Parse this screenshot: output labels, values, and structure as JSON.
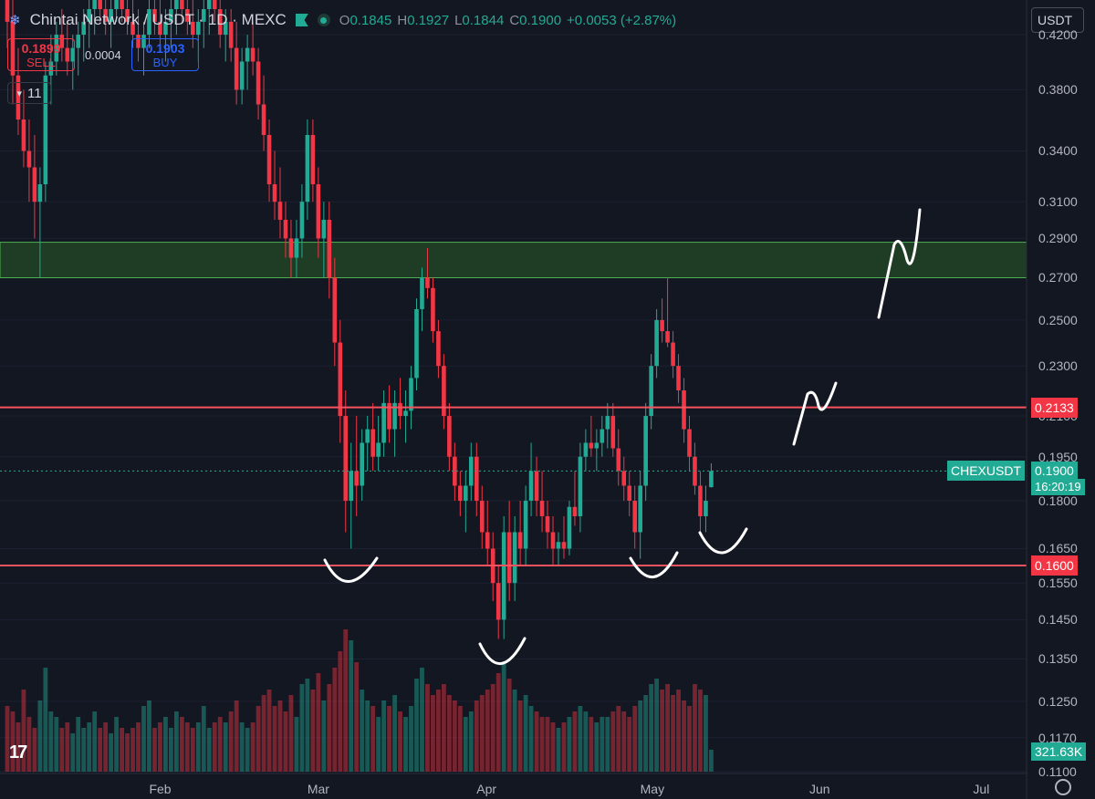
{
  "header": {
    "title": "Chintai Network / USDT · 1D · MEXC",
    "ohlc": [
      {
        "k": "O",
        "v": "0.1845"
      },
      {
        "k": "H",
        "v": "0.1927"
      },
      {
        "k": "L",
        "v": "0.1844"
      },
      {
        "k": "C",
        "v": "0.1900"
      }
    ],
    "change": "+0.0053 (+2.87%)"
  },
  "trade": {
    "sell_price": "0.1899",
    "sell_label": "SELL",
    "spread": "0.0004",
    "buy_price": "0.1903",
    "buy_label": "BUY"
  },
  "indicators_count": "11",
  "currency_button": "USDT",
  "price_axis": [
    "0.4200",
    "0.3800",
    "0.3400",
    "0.3100",
    "0.2900",
    "0.2700",
    "0.2500",
    "0.2300",
    "0.2100",
    "0.1950",
    "0.1800",
    "0.1650",
    "0.1550",
    "0.1450",
    "0.1350",
    "0.1250",
    "0.1170",
    "0.1100"
  ],
  "tags": {
    "resistance": "0.2133",
    "symbol": "CHEXUSDT",
    "last_price": "0.1900",
    "countdown": "16:20:19",
    "support": "0.1600",
    "volume": "321.63K"
  },
  "time_axis": [
    "Feb",
    "Mar",
    "Apr",
    "May",
    "Jun",
    "Jul"
  ],
  "colors": {
    "up": "#22ab94",
    "down": "#f23645",
    "zone": "#2e6b2a",
    "line": "#f7525f"
  },
  "chart_data": {
    "type": "candlestick",
    "scale": "log",
    "ylim": [
      0.11,
      0.44
    ],
    "supply_zone": [
      0.27,
      0.288
    ],
    "horizontal_lines": [
      0.2133,
      0.16
    ],
    "last_price": 0.19,
    "volume_last": "321.63K",
    "date_start": "2024-01-04",
    "candles": [
      [
        0.45,
        0.48,
        0.41,
        0.43,
        1.2
      ],
      [
        0.43,
        0.45,
        0.37,
        0.39,
        1.1
      ],
      [
        0.39,
        0.41,
        0.35,
        0.36,
        0.9
      ],
      [
        0.36,
        0.38,
        0.33,
        0.34,
        1.5
      ],
      [
        0.34,
        0.36,
        0.31,
        0.33,
        1.0
      ],
      [
        0.33,
        0.35,
        0.29,
        0.31,
        0.8
      ],
      [
        0.31,
        0.33,
        0.27,
        0.32,
        1.3
      ],
      [
        0.32,
        0.4,
        0.31,
        0.39,
        1.9
      ],
      [
        0.39,
        0.42,
        0.37,
        0.4,
        1.1
      ],
      [
        0.4,
        0.43,
        0.39,
        0.42,
        1.0
      ],
      [
        0.42,
        0.44,
        0.4,
        0.41,
        0.8
      ],
      [
        0.41,
        0.43,
        0.39,
        0.4,
        0.9
      ],
      [
        0.4,
        0.42,
        0.38,
        0.41,
        0.7
      ],
      [
        0.41,
        0.43,
        0.39,
        0.42,
        1.0
      ],
      [
        0.42,
        0.44,
        0.4,
        0.43,
        0.8
      ],
      [
        0.43,
        0.45,
        0.41,
        0.44,
        0.9
      ],
      [
        0.44,
        0.46,
        0.42,
        0.45,
        1.1
      ],
      [
        0.45,
        0.47,
        0.43,
        0.44,
        0.8
      ],
      [
        0.44,
        0.46,
        0.42,
        0.43,
        0.9
      ],
      [
        0.43,
        0.45,
        0.41,
        0.44,
        0.7
      ],
      [
        0.44,
        0.46,
        0.43,
        0.45,
        1.0
      ],
      [
        0.45,
        0.47,
        0.43,
        0.44,
        0.8
      ],
      [
        0.44,
        0.46,
        0.42,
        0.43,
        0.7
      ],
      [
        0.43,
        0.45,
        0.41,
        0.42,
        0.8
      ],
      [
        0.42,
        0.44,
        0.4,
        0.41,
        0.9
      ],
      [
        0.41,
        0.43,
        0.39,
        0.42,
        1.2
      ],
      [
        0.42,
        0.45,
        0.41,
        0.44,
        1.3
      ],
      [
        0.44,
        0.46,
        0.42,
        0.43,
        0.8
      ],
      [
        0.43,
        0.45,
        0.41,
        0.42,
        0.9
      ],
      [
        0.42,
        0.44,
        0.4,
        0.43,
        1.0
      ],
      [
        0.43,
        0.45,
        0.41,
        0.44,
        0.8
      ],
      [
        0.44,
        0.46,
        0.42,
        0.45,
        1.1
      ],
      [
        0.45,
        0.47,
        0.43,
        0.44,
        1.0
      ],
      [
        0.44,
        0.46,
        0.42,
        0.43,
        0.9
      ],
      [
        0.43,
        0.45,
        0.41,
        0.42,
        0.8
      ],
      [
        0.42,
        0.44,
        0.4,
        0.43,
        0.9
      ],
      [
        0.43,
        0.45,
        0.41,
        0.44,
        1.2
      ],
      [
        0.44,
        0.46,
        0.42,
        0.45,
        0.8
      ],
      [
        0.45,
        0.46,
        0.43,
        0.44,
        0.9
      ],
      [
        0.44,
        0.45,
        0.41,
        0.42,
        1.0
      ],
      [
        0.42,
        0.44,
        0.4,
        0.43,
        0.9
      ],
      [
        0.43,
        0.44,
        0.4,
        0.41,
        1.1
      ],
      [
        0.41,
        0.43,
        0.37,
        0.38,
        1.3
      ],
      [
        0.38,
        0.41,
        0.37,
        0.4,
        0.9
      ],
      [
        0.4,
        0.42,
        0.38,
        0.41,
        0.8
      ],
      [
        0.41,
        0.43,
        0.39,
        0.4,
        0.9
      ],
      [
        0.4,
        0.41,
        0.36,
        0.37,
        1.2
      ],
      [
        0.37,
        0.39,
        0.34,
        0.35,
        1.4
      ],
      [
        0.35,
        0.36,
        0.31,
        0.32,
        1.5
      ],
      [
        0.32,
        0.34,
        0.3,
        0.31,
        1.2
      ],
      [
        0.31,
        0.33,
        0.29,
        0.3,
        1.3
      ],
      [
        0.3,
        0.31,
        0.28,
        0.29,
        1.1
      ],
      [
        0.29,
        0.3,
        0.27,
        0.28,
        1.4
      ],
      [
        0.28,
        0.3,
        0.27,
        0.29,
        1.0
      ],
      [
        0.29,
        0.32,
        0.28,
        0.31,
        1.6
      ],
      [
        0.31,
        0.36,
        0.3,
        0.35,
        1.7
      ],
      [
        0.35,
        0.36,
        0.31,
        0.32,
        1.5
      ],
      [
        0.32,
        0.33,
        0.28,
        0.29,
        1.8
      ],
      [
        0.29,
        0.31,
        0.27,
        0.3,
        1.3
      ],
      [
        0.3,
        0.31,
        0.26,
        0.27,
        1.6
      ],
      [
        0.27,
        0.28,
        0.23,
        0.24,
        1.9
      ],
      [
        0.24,
        0.25,
        0.2,
        0.21,
        2.2
      ],
      [
        0.21,
        0.22,
        0.17,
        0.18,
        2.6
      ],
      [
        0.18,
        0.2,
        0.165,
        0.19,
        2.4
      ],
      [
        0.19,
        0.21,
        0.175,
        0.185,
        2.0
      ],
      [
        0.185,
        0.205,
        0.18,
        0.2,
        1.5
      ],
      [
        0.2,
        0.21,
        0.19,
        0.205,
        1.3
      ],
      [
        0.205,
        0.215,
        0.19,
        0.195,
        1.2
      ],
      [
        0.195,
        0.21,
        0.19,
        0.2,
        1.0
      ],
      [
        0.2,
        0.22,
        0.195,
        0.215,
        1.3
      ],
      [
        0.215,
        0.222,
        0.2,
        0.205,
        1.2
      ],
      [
        0.205,
        0.22,
        0.195,
        0.215,
        1.4
      ],
      [
        0.215,
        0.225,
        0.205,
        0.21,
        1.1
      ],
      [
        0.21,
        0.22,
        0.2,
        0.212,
        1.0
      ],
      [
        0.212,
        0.23,
        0.205,
        0.225,
        1.2
      ],
      [
        0.225,
        0.26,
        0.22,
        0.255,
        1.7
      ],
      [
        0.255,
        0.275,
        0.245,
        0.27,
        1.9
      ],
      [
        0.27,
        0.285,
        0.26,
        0.265,
        1.6
      ],
      [
        0.265,
        0.27,
        0.24,
        0.245,
        1.4
      ],
      [
        0.245,
        0.25,
        0.225,
        0.23,
        1.5
      ],
      [
        0.23,
        0.235,
        0.205,
        0.21,
        1.6
      ],
      [
        0.21,
        0.215,
        0.19,
        0.195,
        1.4
      ],
      [
        0.195,
        0.2,
        0.18,
        0.185,
        1.3
      ],
      [
        0.185,
        0.19,
        0.175,
        0.18,
        1.2
      ],
      [
        0.18,
        0.19,
        0.17,
        0.185,
        1.0
      ],
      [
        0.185,
        0.2,
        0.18,
        0.195,
        1.1
      ],
      [
        0.195,
        0.2,
        0.175,
        0.18,
        1.3
      ],
      [
        0.18,
        0.185,
        0.165,
        0.17,
        1.4
      ],
      [
        0.17,
        0.18,
        0.16,
        0.165,
        1.5
      ],
      [
        0.165,
        0.17,
        0.15,
        0.155,
        1.6
      ],
      [
        0.155,
        0.16,
        0.14,
        0.145,
        1.8
      ],
      [
        0.145,
        0.175,
        0.14,
        0.17,
        2.0
      ],
      [
        0.17,
        0.18,
        0.15,
        0.155,
        1.7
      ],
      [
        0.155,
        0.175,
        0.15,
        0.17,
        1.5
      ],
      [
        0.17,
        0.18,
        0.16,
        0.165,
        1.3
      ],
      [
        0.165,
        0.185,
        0.16,
        0.18,
        1.4
      ],
      [
        0.18,
        0.2,
        0.175,
        0.19,
        1.2
      ],
      [
        0.19,
        0.195,
        0.175,
        0.18,
        1.1
      ],
      [
        0.18,
        0.19,
        0.17,
        0.175,
        1.0
      ],
      [
        0.175,
        0.18,
        0.165,
        0.17,
        1.0
      ],
      [
        0.17,
        0.175,
        0.16,
        0.165,
        0.9
      ],
      [
        0.165,
        0.17,
        0.16,
        0.167,
        0.8
      ],
      [
        0.167,
        0.175,
        0.162,
        0.165,
        0.9
      ],
      [
        0.165,
        0.18,
        0.163,
        0.178,
        1.0
      ],
      [
        0.178,
        0.19,
        0.172,
        0.175,
        1.1
      ],
      [
        0.175,
        0.2,
        0.17,
        0.195,
        1.2
      ],
      [
        0.195,
        0.205,
        0.19,
        0.2,
        1.1
      ],
      [
        0.2,
        0.21,
        0.195,
        0.198,
        1.0
      ],
      [
        0.198,
        0.205,
        0.19,
        0.2,
        0.9
      ],
      [
        0.2,
        0.21,
        0.195,
        0.205,
        1.0
      ],
      [
        0.205,
        0.215,
        0.198,
        0.21,
        1.0
      ],
      [
        0.21,
        0.215,
        0.195,
        0.198,
        1.1
      ],
      [
        0.198,
        0.205,
        0.185,
        0.19,
        1.2
      ],
      [
        0.19,
        0.195,
        0.18,
        0.185,
        1.1
      ],
      [
        0.185,
        0.19,
        0.175,
        0.18,
        1.0
      ],
      [
        0.18,
        0.185,
        0.165,
        0.17,
        1.2
      ],
      [
        0.17,
        0.19,
        0.162,
        0.185,
        1.3
      ],
      [
        0.185,
        0.215,
        0.18,
        0.21,
        1.4
      ],
      [
        0.21,
        0.235,
        0.205,
        0.23,
        1.6
      ],
      [
        0.23,
        0.255,
        0.225,
        0.25,
        1.7
      ],
      [
        0.25,
        0.26,
        0.24,
        0.245,
        1.5
      ],
      [
        0.245,
        0.27,
        0.238,
        0.24,
        1.6
      ],
      [
        0.24,
        0.245,
        0.225,
        0.23,
        1.4
      ],
      [
        0.23,
        0.235,
        0.215,
        0.22,
        1.5
      ],
      [
        0.22,
        0.225,
        0.2,
        0.205,
        1.3
      ],
      [
        0.205,
        0.21,
        0.19,
        0.195,
        1.2
      ],
      [
        0.195,
        0.2,
        0.182,
        0.185,
        1.6
      ],
      [
        0.185,
        0.19,
        0.17,
        0.175,
        1.5
      ],
      [
        0.175,
        0.185,
        0.17,
        0.18,
        1.4
      ],
      [
        0.1845,
        0.1927,
        0.1844,
        0.19,
        0.4
      ]
    ]
  }
}
